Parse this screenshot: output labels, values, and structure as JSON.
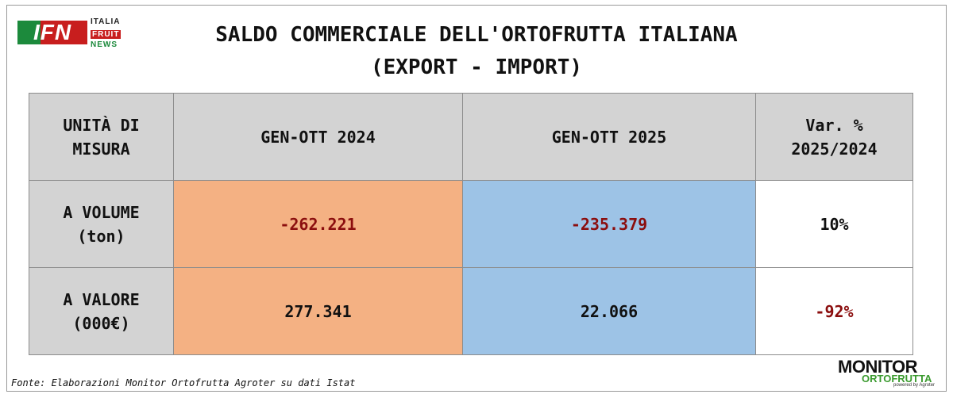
{
  "logo": {
    "main": "IFN",
    "line1": "ITALIA",
    "line2": "FRUIT",
    "line3": "NEWS"
  },
  "title": {
    "line1": "SALDO COMMERCIALE DELL'ORTOFRUTTA ITALIANA",
    "line2": "(EXPORT - IMPORT)"
  },
  "table": {
    "headers": {
      "unit_line1": "UNITÀ DI",
      "unit_line2": "MISURA",
      "col2024": "GEN-OTT 2024",
      "col2025": "GEN-OTT 2025",
      "var_line1": "Var. %",
      "var_line2": "2025/2024"
    },
    "rows": [
      {
        "label_line1": "A VOLUME",
        "label_line2": "(ton)",
        "v2024": "-262.221",
        "v2025": "-235.379",
        "var": "10%"
      },
      {
        "label_line1": "A VALORE",
        "label_line2": "(000€)",
        "v2024": "277.341",
        "v2025": "22.066",
        "var": "-92%"
      }
    ],
    "colors": {
      "header": "#d3d3d3",
      "col2024": "#f4b183",
      "col2025": "#9dc3e6",
      "negative": "#8b0e0e"
    }
  },
  "source": "Fonte: Elaborazioni Monitor Ortofrutta Agroter su dati Istat",
  "monitor_logo": {
    "word1": "MONITOR",
    "word2": "ORTOFRUTTA",
    "tagline": "powered by Agroter"
  }
}
